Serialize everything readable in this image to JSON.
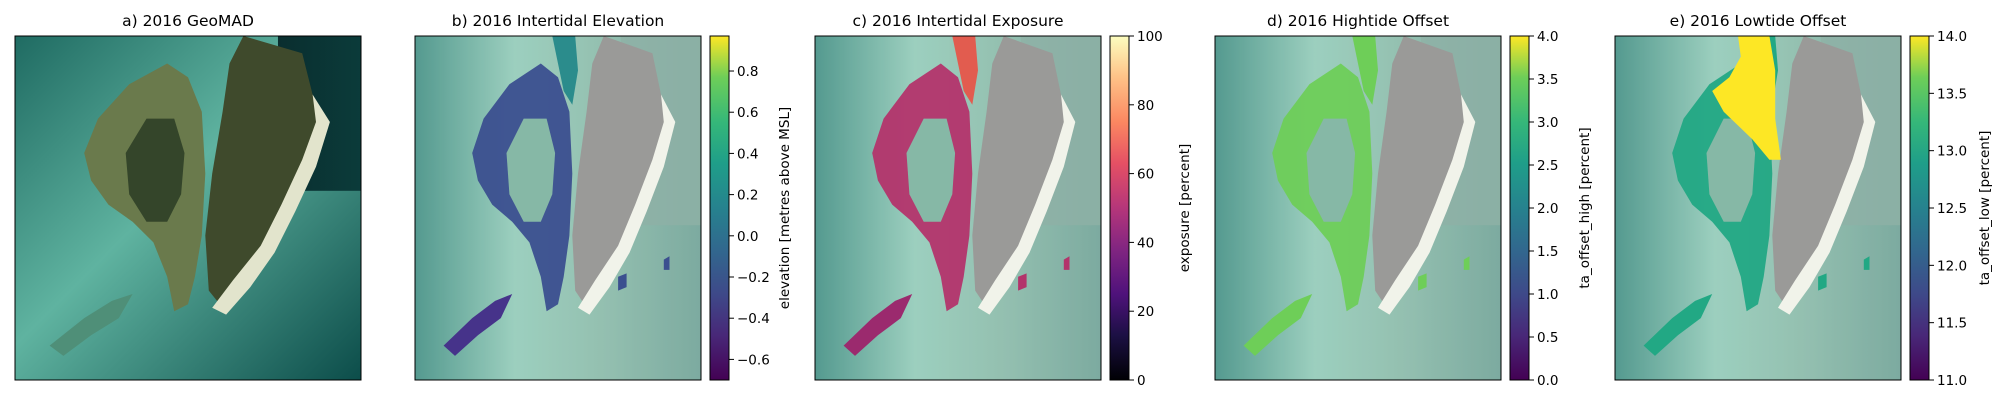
{
  "chart_data": [
    {
      "type": "image",
      "title": "a) 2016 GeoMAD",
      "colors": {
        "water": "#2e7f73",
        "shallow": "#6fc4ad",
        "land": "#3f4a2c",
        "beach": "#e2e4cc"
      }
    },
    {
      "type": "heatmap",
      "title": "b) 2016 Intertidal Elevation",
      "colorbar": {
        "label": "elevation [metres above MSL]",
        "cmap": "viridis",
        "ticks": [
          -0.6,
          -0.4,
          -0.2,
          0.0,
          0.2,
          0.4,
          0.6,
          0.8
        ],
        "tick_labels": [
          "−0.6",
          "−0.4",
          "−0.2",
          "0.0",
          "0.2",
          "0.4",
          "0.6",
          "0.8"
        ],
        "range": [
          -0.7,
          0.97
        ]
      }
    },
    {
      "type": "heatmap",
      "title": "c) 2016 Intertidal Exposure",
      "colorbar": {
        "label": "exposure [percent]",
        "cmap": "magma",
        "ticks": [
          0,
          20,
          40,
          60,
          80,
          100
        ],
        "tick_labels": [
          "0",
          "20",
          "40",
          "60",
          "80",
          "100"
        ],
        "range": [
          0,
          100
        ]
      }
    },
    {
      "type": "heatmap",
      "title": "d) 2016 Hightide Offset",
      "colorbar": {
        "label": "ta_offset_high [percent]",
        "cmap": "viridis",
        "ticks": [
          0.0,
          0.5,
          1.0,
          1.5,
          2.0,
          2.5,
          3.0,
          3.5,
          4.0
        ],
        "tick_labels": [
          "0.0",
          "0.5",
          "1.0",
          "1.5",
          "2.0",
          "2.5",
          "3.0",
          "3.5",
          "4.0"
        ],
        "range": [
          0,
          4
        ],
        "value_shown": 3.0
      }
    },
    {
      "type": "heatmap",
      "title": "e) 2016 Lowtide Offset",
      "colorbar": {
        "label": "ta_offset_low [percent]",
        "cmap": "viridis",
        "ticks": [
          11.0,
          11.5,
          12.0,
          12.5,
          13.0,
          13.5,
          14.0
        ],
        "tick_labels": [
          "11.0",
          "11.5",
          "12.0",
          "12.5",
          "13.0",
          "13.5",
          "14.0"
        ],
        "range": [
          11,
          14
        ],
        "values_shown": [
          13.0,
          14.0
        ]
      }
    }
  ]
}
